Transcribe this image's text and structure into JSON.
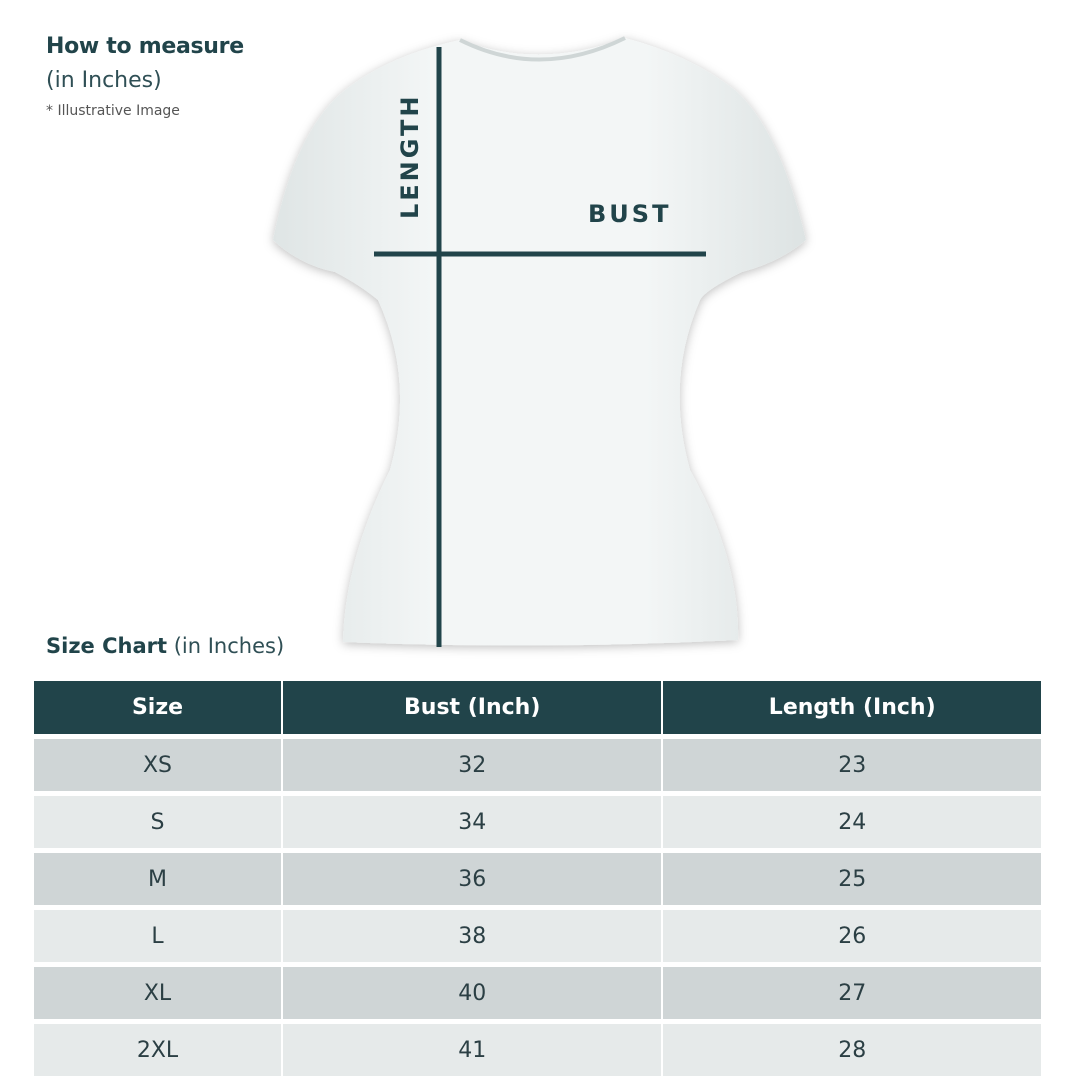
{
  "header": {
    "title": "How to measure",
    "subtitle": "(in Inches)",
    "note": "* Illustrative Image"
  },
  "illustration": {
    "length_label": "LENGTH",
    "bust_label": "BUST",
    "line_color": "#21444a"
  },
  "size_chart": {
    "title": "Size Chart",
    "title_unit": "(in Inches)",
    "columns": [
      "Size",
      "Bust (Inch)",
      "Length (Inch)"
    ],
    "rows": [
      [
        "XS",
        "32",
        "23"
      ],
      [
        "S",
        "34",
        "24"
      ],
      [
        "M",
        "36",
        "25"
      ],
      [
        "L",
        "38",
        "26"
      ],
      [
        "XL",
        "40",
        "27"
      ],
      [
        "2XL",
        "41",
        "28"
      ]
    ],
    "header_color": "#21444a",
    "row_colors": [
      "#cfd5d6",
      "#e6eaea"
    ]
  }
}
